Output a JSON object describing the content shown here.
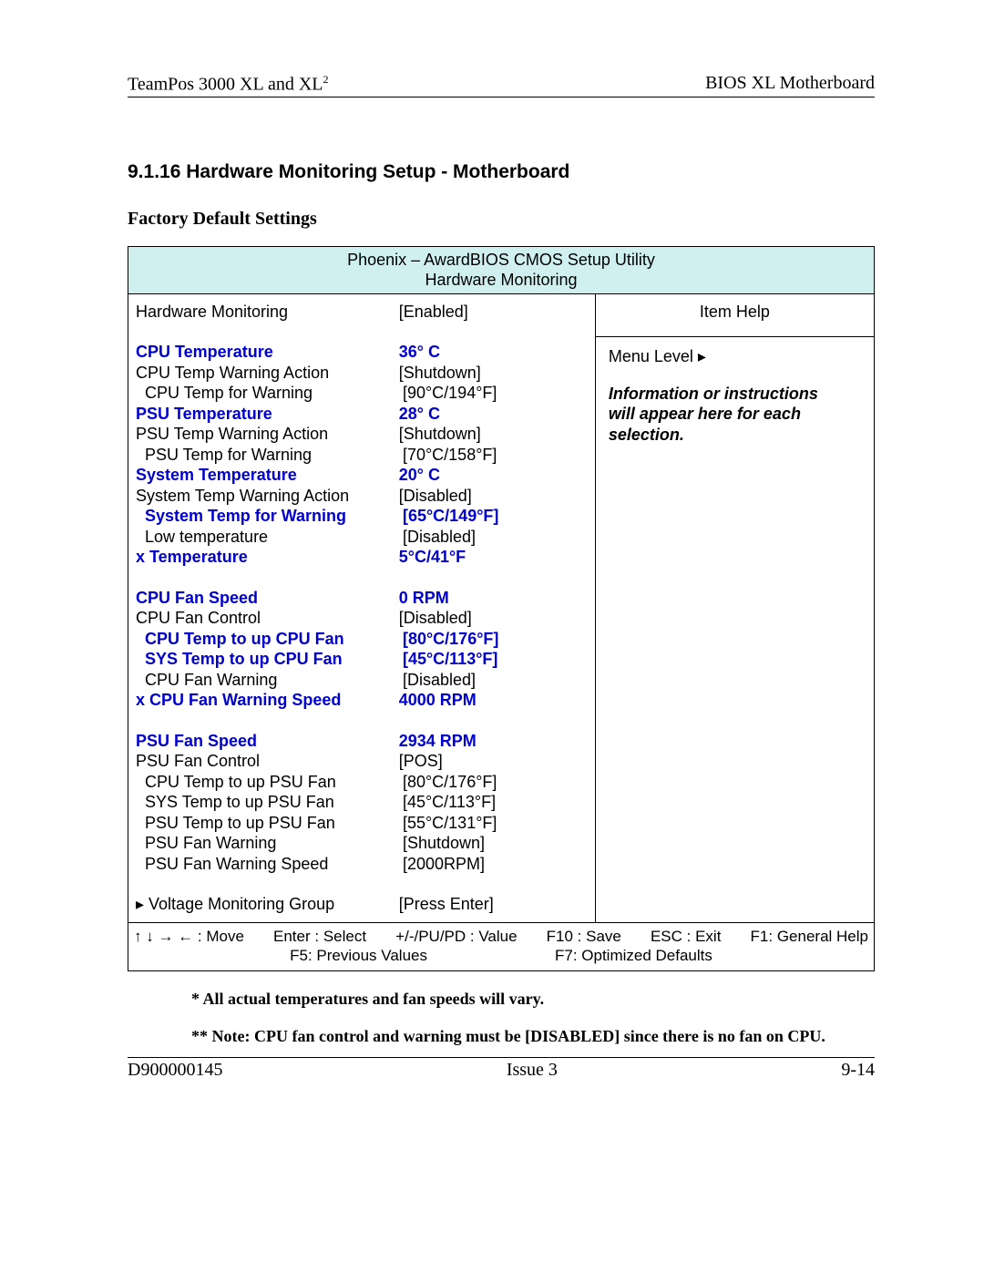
{
  "header": {
    "left_prefix": "TeamPos 3000 XL and XL",
    "left_sup": "2",
    "right": "BIOS XL Motherboard"
  },
  "section_title": "9.1.16 Hardware Monitoring Setup - Motherboard",
  "sub_title": "Factory Default Settings",
  "bios": {
    "title1": "Phoenix – AwardBIOS CMOS Setup Utility",
    "title2": "Hardware Monitoring",
    "help_title": "Item Help",
    "menu_level": "Menu Level  ▸",
    "help_text1": "Information or instructions",
    "help_text2": "will appear here for each selection.",
    "rows": [
      {
        "label": "Hardware Monitoring",
        "value": "[Enabled]",
        "blue": false,
        "indent": 0
      },
      {
        "spacer": true
      },
      {
        "label": "CPU Temperature",
        "value": "36° C",
        "blue": true,
        "indent": 0
      },
      {
        "label": "CPU Temp Warning Action",
        "value": "[Shutdown]",
        "blue": false,
        "indent": 0
      },
      {
        "label": "CPU Temp for Warning",
        "value": "[90°C/194°F]",
        "blue": false,
        "indent": 1
      },
      {
        "label": "PSU Temperature",
        "value": " 28° C",
        "blue": true,
        "indent": 0
      },
      {
        "label": "PSU Temp Warning Action",
        "value": "[Shutdown]",
        "blue": false,
        "indent": 0
      },
      {
        "label": "PSU Temp for Warning",
        "value": "[70°C/158°F]",
        "blue": false,
        "indent": 1
      },
      {
        "label": "System Temperature",
        "value": " 20° C",
        "blue": true,
        "indent": 0
      },
      {
        "label": "System Temp Warning Action",
        "value": "[Disabled]",
        "blue": false,
        "indent": 0
      },
      {
        "label": "System Temp for Warning",
        "value": "[65°C/149°F]",
        "blue": true,
        "indent": 1
      },
      {
        "label": "Low temperature",
        "value": "[Disabled]",
        "blue": false,
        "indent": 1
      },
      {
        "label": "x  Temperature",
        "value": "5°C/41°F",
        "blue": true,
        "indent": 0
      },
      {
        "spacer": true
      },
      {
        "label": "CPU Fan Speed",
        "value": "0 RPM",
        "blue": true,
        "indent": 0
      },
      {
        "label": "CPU Fan Control",
        "value": "[Disabled]",
        "blue": false,
        "indent": 0
      },
      {
        "label": "CPU Temp to up CPU Fan",
        "value": "[80°C/176°F]",
        "blue": true,
        "indent": 1
      },
      {
        "label": "SYS Temp to up CPU Fan",
        "value": "[45°C/113°F]",
        "blue": true,
        "indent": 1
      },
      {
        "label": "CPU Fan Warning",
        "value": "[Disabled]",
        "blue": false,
        "indent": 1
      },
      {
        "label": "x CPU Fan Warning Speed",
        "value": "4000 RPM",
        "blue": true,
        "indent": 0
      },
      {
        "spacer": true
      },
      {
        "label": "PSU Fan Speed",
        "value": "2934 RPM",
        "blue": true,
        "indent": 0
      },
      {
        "label": "PSU Fan Control",
        "value": "[POS]",
        "blue": false,
        "indent": 0
      },
      {
        "label": "CPU Temp to up PSU Fan",
        "value": "[80°C/176°F]",
        "blue": false,
        "indent": 1
      },
      {
        "label": "SYS Temp to up PSU Fan",
        "value": "[45°C/113°F]",
        "blue": false,
        "indent": 1
      },
      {
        "label": "PSU Temp to up PSU Fan",
        "value": "[55°C/131°F]",
        "blue": false,
        "indent": 1
      },
      {
        "label": "PSU Fan Warning",
        "value": "[Shutdown]",
        "blue": false,
        "indent": 1
      },
      {
        "label": "PSU Fan Warning Speed",
        "value": "[2000RPM]",
        "blue": false,
        "indent": 1
      },
      {
        "spacer": true
      },
      {
        "label": "▸  Voltage Monitoring Group",
        "value": "[Press Enter]",
        "blue": false,
        "indent": 0
      }
    ],
    "keys_row1": {
      "arrows": "↑   ↓   →   ←   : Move",
      "enter": "Enter : Select",
      "value": "+/-/PU/PD : Value",
      "save": "F10 : Save",
      "exit": "ESC : Exit",
      "help": "F1: General Help"
    },
    "keys_row2": {
      "f5": "F5: Previous Values",
      "f7": "F7: Optimized Defaults"
    }
  },
  "notes": {
    "n1": "* All actual temperatures and fan speeds will vary.",
    "n2": "** Note:  CPU fan control and warning must be [DISABLED] since there is no fan on CPU."
  },
  "footer": {
    "left": "D900000145",
    "center": "Issue 3",
    "right": "9-14"
  },
  "colors": {
    "blue": "#0000cc",
    "header_bg": "#d0f0f0",
    "border": "#000000"
  }
}
